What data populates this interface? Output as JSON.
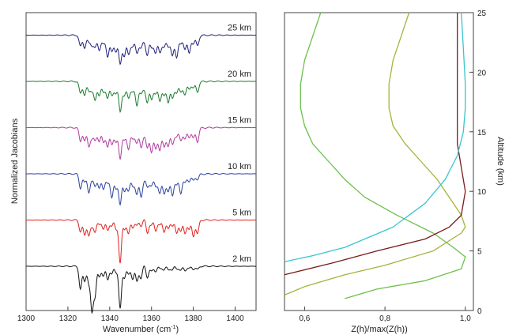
{
  "chart_data": [
    {
      "type": "line",
      "xlabel": "Wavenumber (cm",
      "xlabel_sup": "-1",
      "xlabel_close": ")",
      "ylabel": "Normalized Jacobians",
      "xlim": [
        1300,
        1410
      ],
      "x_ticks": [
        "1300",
        "1320",
        "1340",
        "1360",
        "1380",
        "1400"
      ],
      "x_tick_values": [
        1300,
        1320,
        1340,
        1360,
        1380,
        1400
      ],
      "series": [
        {
          "altitude": "25 km",
          "color": "#1f1f7a",
          "offset": 5
        },
        {
          "altitude": "20 km",
          "color": "#1a7a2e",
          "offset": 4
        },
        {
          "altitude": "15 km",
          "color": "#b0399e",
          "offset": 3
        },
        {
          "altitude": "10 km",
          "color": "#2a3fa0",
          "offset": 2
        },
        {
          "altitude": "5 km",
          "color": "#e0201c",
          "offset": 1
        },
        {
          "altitude": "2 km",
          "color": "#111111",
          "offset": 0
        }
      ]
    },
    {
      "type": "line",
      "xlabel": "Z(h)/max(Z(h))",
      "ylabel": "Altitude (km)",
      "xlim": [
        0.55,
        1.02
      ],
      "ylim": [
        0,
        25
      ],
      "x_ticks": [
        "0,6",
        "0,8",
        "1,0"
      ],
      "x_tick_values": [
        0.6,
        0.8,
        1.0
      ],
      "y_ticks": [
        "0",
        "5",
        "10",
        "15",
        "20",
        "25"
      ],
      "y_tick_values": [
        0,
        5,
        10,
        15,
        20,
        25
      ],
      "series": [
        {
          "color": "#6cc04a",
          "points": [
            [
              0.64,
              25
            ],
            [
              0.62,
              23
            ],
            [
              0.6,
              21
            ],
            [
              0.59,
              19
            ],
            [
              0.59,
              17
            ],
            [
              0.6,
              15.5
            ],
            [
              0.62,
              14
            ],
            [
              0.66,
              12.5
            ],
            [
              0.7,
              11
            ],
            [
              0.75,
              9.5
            ],
            [
              0.83,
              8
            ],
            [
              0.92,
              6.5
            ],
            [
              0.97,
              5.3
            ],
            [
              1.0,
              4.5
            ],
            [
              0.99,
              3.5
            ],
            [
              0.9,
              2.5
            ],
            [
              0.78,
              1.8
            ],
            [
              0.7,
              1.0
            ]
          ]
        },
        {
          "color": "#a6b33a",
          "points": [
            [
              0.86,
              25
            ],
            [
              0.84,
              23
            ],
            [
              0.82,
              21
            ],
            [
              0.81,
              19
            ],
            [
              0.81,
              17
            ],
            [
              0.82,
              15.5
            ],
            [
              0.85,
              14
            ],
            [
              0.89,
              12.5
            ],
            [
              0.93,
              11
            ],
            [
              0.96,
              9.5
            ],
            [
              0.99,
              8
            ],
            [
              1.0,
              7
            ],
            [
              0.99,
              6.5
            ],
            [
              0.92,
              5
            ],
            [
              0.8,
              3.8
            ],
            [
              0.7,
              3
            ],
            [
              0.6,
              2
            ],
            [
              0.55,
              1.3
            ]
          ]
        },
        {
          "color": "#7a1a1a",
          "points": [
            [
              0.98,
              25
            ],
            [
              0.98,
              22
            ],
            [
              0.98,
              19
            ],
            [
              0.98,
              17
            ],
            [
              0.98,
              14
            ],
            [
              0.99,
              12
            ],
            [
              1.0,
              10
            ],
            [
              0.99,
              8
            ],
            [
              0.96,
              7
            ],
            [
              0.9,
              6
            ],
            [
              0.78,
              5
            ],
            [
              0.67,
              4
            ],
            [
              0.55,
              3
            ]
          ]
        },
        {
          "color": "#38c6cc",
          "points": [
            [
              0.99,
              25
            ],
            [
              0.995,
              22
            ],
            [
              1.0,
              19
            ],
            [
              1.0,
              17
            ],
            [
              0.995,
              15
            ],
            [
              0.98,
              13
            ],
            [
              0.95,
              11
            ],
            [
              0.9,
              9
            ],
            [
              0.82,
              7
            ],
            [
              0.7,
              5.3
            ],
            [
              0.62,
              4.6
            ],
            [
              0.55,
              4.1
            ]
          ]
        }
      ]
    }
  ]
}
